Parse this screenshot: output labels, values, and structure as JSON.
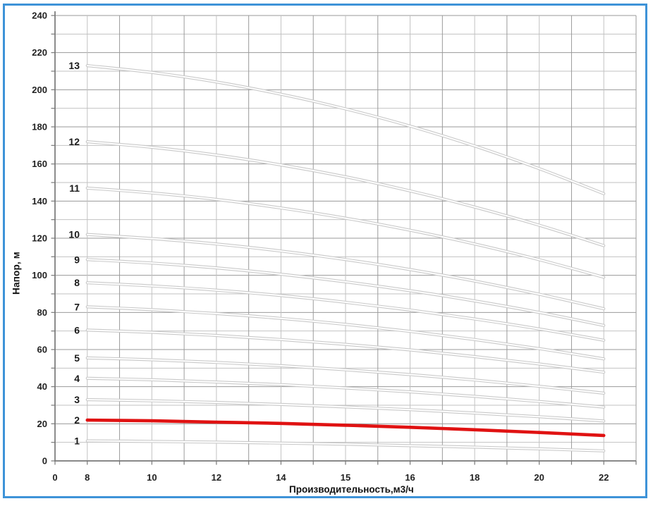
{
  "frame": {
    "border_color": "#3e93d8",
    "background_color": "#ffffff"
  },
  "chart_data": {
    "type": "line",
    "title": "",
    "xlabel": "Производительность,м3/ч",
    "ylabel": "Напор, м",
    "ylim": [
      0,
      240
    ],
    "y_major_step": 20,
    "y_minor_step": 10,
    "y_tick_labels": [
      "0",
      "20",
      "40",
      "60",
      "80",
      "100",
      "120",
      "140",
      "160",
      "180",
      "200",
      "220",
      "240"
    ],
    "x_tick_labels": [
      "0",
      "8",
      "10",
      "12",
      "14",
      "15",
      "16",
      "18",
      "20",
      "22"
    ],
    "x_tick_grid_positions": [
      0,
      1,
      3,
      5,
      7,
      9,
      11,
      13,
      15,
      17
    ],
    "x_grid_divisions": 18,
    "grid": true,
    "legend_position": "none",
    "x_values": [
      8,
      10,
      12,
      14,
      15,
      16,
      18,
      20,
      22
    ],
    "series_grid_positions": [
      1,
      3,
      5,
      7,
      9,
      11,
      13,
      15,
      17
    ],
    "highlighted_series": "2",
    "series": [
      {
        "name": "1",
        "color": "gray",
        "values": [
          10.8,
          10.5,
          10.1,
          9.6,
          9.0,
          8.2,
          7.4,
          6.5,
          5.4
        ]
      },
      {
        "name": "2",
        "color": "red",
        "values": [
          22.0,
          21.6,
          20.9,
          20.2,
          19.2,
          18.1,
          16.8,
          15.3,
          13.7
        ]
      },
      {
        "name": "3",
        "color": "gray",
        "values": [
          33.0,
          32.4,
          31.5,
          30.4,
          29.1,
          27.6,
          25.8,
          23.8,
          21.5
        ]
      },
      {
        "name": "4",
        "color": "gray",
        "values": [
          44.5,
          43.7,
          42.5,
          41.1,
          39.3,
          37.2,
          34.8,
          32.0,
          29.0
        ]
      },
      {
        "name": "5",
        "color": "gray",
        "values": [
          55.5,
          54.5,
          53.1,
          51.3,
          49.1,
          46.5,
          43.6,
          40.2,
          36.5
        ]
      },
      {
        "name": "6",
        "color": "gray",
        "values": [
          70.5,
          69.3,
          67.6,
          65.4,
          62.8,
          59.8,
          56.2,
          52.2,
          47.8
        ]
      },
      {
        "name": "7",
        "color": "gray",
        "values": [
          83.0,
          81.5,
          79.4,
          76.8,
          73.6,
          69.8,
          65.4,
          60.5,
          55.0
        ]
      },
      {
        "name": "8",
        "color": "gray",
        "values": [
          96.0,
          94.3,
          92.0,
          89.1,
          85.5,
          81.3,
          76.5,
          71.1,
          65.0
        ]
      },
      {
        "name": "9",
        "color": "gray",
        "values": [
          108.5,
          106.6,
          104.0,
          100.6,
          96.5,
          91.7,
          86.2,
          80.0,
          73.0
        ]
      },
      {
        "name": "10",
        "color": "gray",
        "values": [
          122.0,
          119.8,
          116.9,
          113.1,
          108.5,
          103.1,
          96.9,
          89.8,
          82.0
        ]
      },
      {
        "name": "11",
        "color": "gray",
        "values": [
          147.0,
          144.4,
          140.9,
          136.3,
          130.8,
          124.3,
          116.9,
          108.4,
          99.0
        ]
      },
      {
        "name": "12",
        "color": "gray",
        "values": [
          172.0,
          169.0,
          164.8,
          159.5,
          153.1,
          145.5,
          136.8,
          127.0,
          116.0
        ]
      },
      {
        "name": "13",
        "color": "gray",
        "values": [
          213.0,
          209.3,
          204.2,
          197.6,
          189.7,
          180.4,
          169.7,
          157.5,
          144.0
        ]
      }
    ],
    "colors": {
      "highlight_line": "#e01212",
      "gray_line_outer": "#c9c9c9",
      "gray_line_core": "#ffffff",
      "grid_major": "#9a9a9a",
      "grid_minor": "#c2c2c2",
      "axis": "#787878",
      "tick_text": "#222222"
    }
  }
}
